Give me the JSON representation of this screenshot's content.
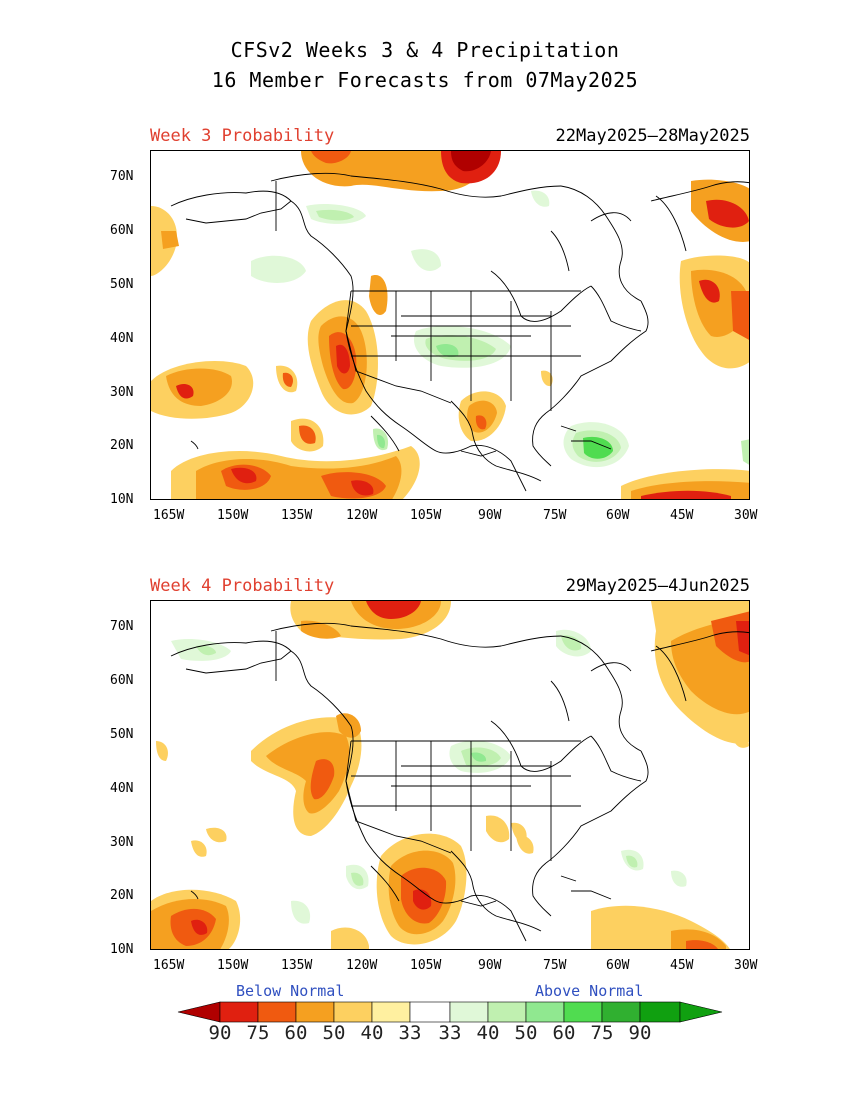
{
  "header": {
    "title_line1": "CFSv2 Weeks 3 & 4 Precipitation",
    "title_line2": "16 Member Forecasts from 07May2025"
  },
  "panels": [
    {
      "label": "Week 3 Probability",
      "date_range": "22May2025—28May2025"
    },
    {
      "label": "Week 4 Probability",
      "date_range": "29May2025—4Jun2025"
    }
  ],
  "axes": {
    "lat_labels": [
      "70N",
      "60N",
      "50N",
      "40N",
      "30N",
      "20N",
      "10N"
    ],
    "lat_values": [
      70,
      60,
      50,
      40,
      30,
      20,
      10
    ],
    "lon_labels": [
      "165W",
      "150W",
      "135W",
      "120W",
      "105W",
      "90W",
      "75W",
      "60W",
      "45W",
      "30W"
    ],
    "lon_values": [
      -165,
      -150,
      -135,
      -120,
      -105,
      -90,
      -75,
      -60,
      -45,
      -30
    ],
    "lat_range": [
      10,
      75
    ],
    "lon_range": [
      -170,
      -30
    ]
  },
  "legend": {
    "below_label": "Below Normal",
    "above_label": "Above Normal",
    "numbers": [
      "90",
      "75",
      "60",
      "50",
      "40",
      "33",
      "33",
      "40",
      "50",
      "60",
      "75",
      "90"
    ],
    "colors": [
      "#b00000",
      "#e02010",
      "#f05a10",
      "#f5a020",
      "#fdd060",
      "#fff0a0",
      "#ffffff",
      "#e0f8d8",
      "#c0f0b0",
      "#90e890",
      "#50dc50",
      "#30b030",
      "#10a010"
    ]
  },
  "colors": {
    "below": [
      "#fff0a0",
      "#fdd060",
      "#f5a020",
      "#f05a10",
      "#e02010",
      "#b00000"
    ],
    "above": [
      "#e0f8d8",
      "#c0f0b0",
      "#90e890",
      "#50dc50"
    ]
  }
}
